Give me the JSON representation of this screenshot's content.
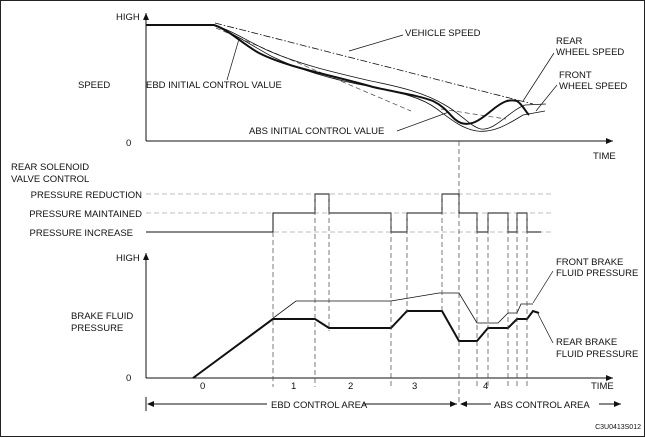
{
  "speed_graph": {
    "y_label": "SPEED",
    "y_high": "HIGH",
    "y_zero": "0",
    "x_label": "TIME",
    "vehicle_speed": "VEHICLE SPEED",
    "rear_wheel_speed": [
      "REAR",
      "WHEEL SPEED"
    ],
    "front_wheel_speed": [
      "FRONT",
      "WHEEL SPEED"
    ],
    "ebd_initial": "EBD INITIAL CONTROL VALUE",
    "abs_initial": "ABS INITIAL CONTROL VALUE"
  },
  "solenoid_graph": {
    "title": [
      "REAR SOLENOID",
      "VALVE CONTROL"
    ],
    "levels": [
      "PRESSURE REDUCTION",
      "PRESSURE MAINTAINED",
      "PRESSURE INCREASE"
    ]
  },
  "pressure_graph": {
    "y_high": "HIGH",
    "y_zero": "0",
    "y_label": [
      "BRAKE FLUID",
      "PRESSURE"
    ],
    "x_label": "TIME",
    "front_brake": [
      "FRONT BRAKE",
      "FLUID PRESSURE"
    ],
    "rear_brake": [
      "REAR BRAKE",
      "FLUID PRESSURE"
    ],
    "phases": [
      "0",
      "1",
      "2",
      "3",
      "4"
    ]
  },
  "areas": {
    "ebd": "EBD CONTROL AREA",
    "abs": "ABS CONTROL AREA"
  },
  "code": "C3U0413S012"
}
